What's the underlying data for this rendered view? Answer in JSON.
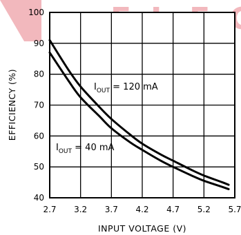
{
  "watermark": {
    "text": "ELEC",
    "color": "#f2b8bd"
  },
  "chart_data": {
    "type": "line",
    "xlabel": "INPUT VOLTAGE (V)",
    "ylabel": "EFFICIENCY (%)",
    "xlim": [
      2.7,
      5.7
    ],
    "ylim": [
      40,
      100
    ],
    "xticks": [
      "2.7",
      "3.2",
      "3.7",
      "4.2",
      "4.7",
      "5.2",
      "5.7"
    ],
    "yticks": [
      "40",
      "50",
      "60",
      "70",
      "80",
      "90",
      "100"
    ],
    "grid": true,
    "series": [
      {
        "name": "IOUT = 120 mA",
        "label_main": "I",
        "label_sub": "OUT",
        "label_rest": " = 120 mA",
        "x": [
          2.7,
          3.0,
          3.2,
          3.5,
          3.7,
          4.0,
          4.2,
          4.5,
          4.7,
          5.0,
          5.2,
          5.5,
          5.6
        ],
        "values": [
          91,
          81.5,
          76,
          69.5,
          65.5,
          60.5,
          57.5,
          54,
          52,
          49,
          47.2,
          45,
          44.2
        ]
      },
      {
        "name": "IOUT = 40 mA",
        "label_main": "I",
        "label_sub": "OUT",
        "label_rest": " = 40 mA",
        "x": [
          2.7,
          3.0,
          3.2,
          3.5,
          3.7,
          4.0,
          4.2,
          4.5,
          4.7,
          5.0,
          5.2,
          5.5,
          5.6
        ],
        "values": [
          87,
          78,
          72.5,
          66.5,
          62.5,
          58,
          55.5,
          52,
          50,
          47.2,
          45.5,
          43.5,
          42.8
        ]
      }
    ]
  }
}
